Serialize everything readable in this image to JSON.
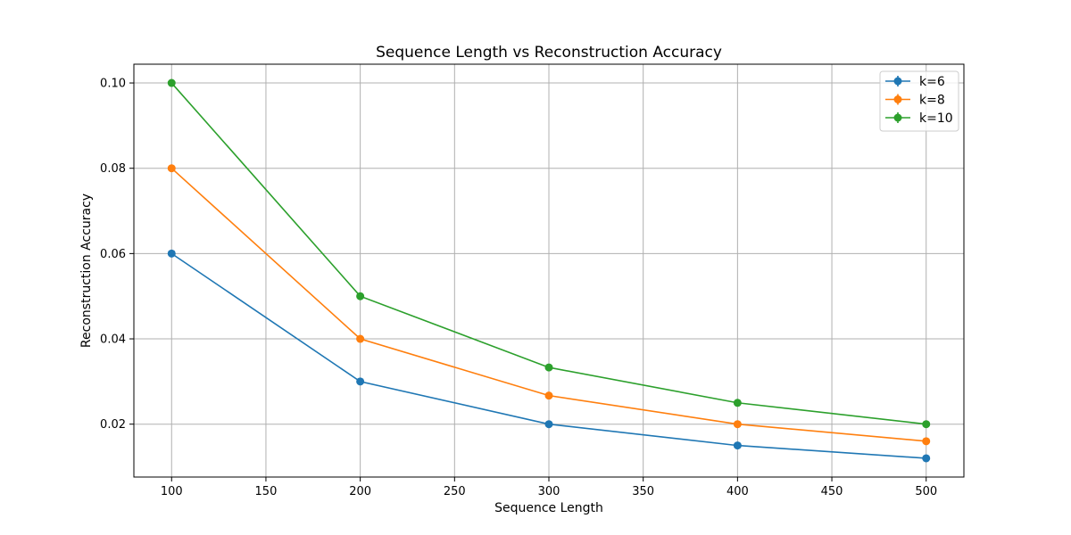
{
  "chart_data": {
    "type": "line",
    "title": "Sequence Length vs Reconstruction Accuracy",
    "xlabel": "Sequence Length",
    "ylabel": "Reconstruction Accuracy",
    "x": [
      100,
      200,
      300,
      400,
      500
    ],
    "xlim": [
      80,
      520
    ],
    "ylim": [
      0.0076,
      0.1044
    ],
    "xticks": [
      100,
      150,
      200,
      250,
      300,
      350,
      400,
      450,
      500
    ],
    "xtick_labels": [
      "100",
      "150",
      "200",
      "250",
      "300",
      "350",
      "400",
      "450",
      "500"
    ],
    "yticks": [
      0.02,
      0.04,
      0.06,
      0.08,
      0.1
    ],
    "ytick_labels": [
      "0.02",
      "0.04",
      "0.06",
      "0.08",
      "0.10"
    ],
    "grid": true,
    "legend_position": "top-right",
    "marker": "circle",
    "series": [
      {
        "name": "k=6",
        "color": "#1f77b4",
        "values": [
          0.06,
          0.03,
          0.02,
          0.015,
          0.012
        ]
      },
      {
        "name": "k=8",
        "color": "#ff7f0e",
        "values": [
          0.08,
          0.04,
          0.0267,
          0.02,
          0.016
        ]
      },
      {
        "name": "k=10",
        "color": "#2ca02c",
        "values": [
          0.1,
          0.05,
          0.0333,
          0.025,
          0.02
        ]
      }
    ]
  }
}
